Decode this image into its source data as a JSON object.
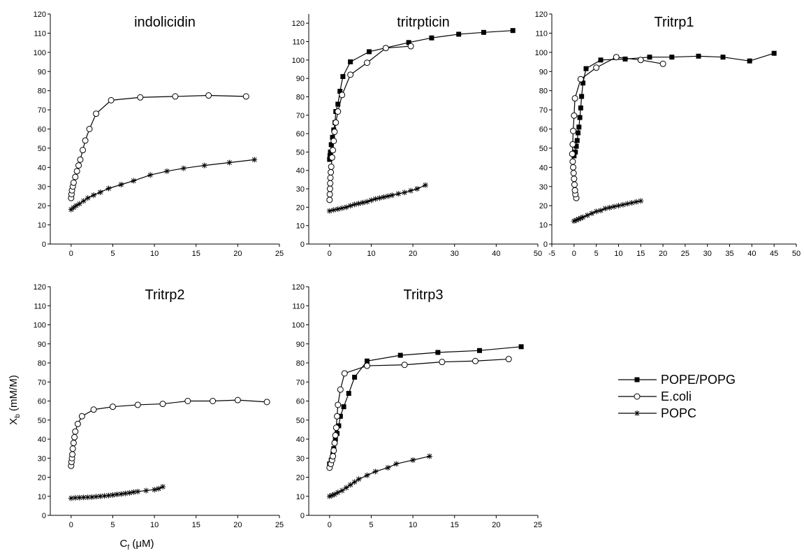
{
  "chart_data": [
    {
      "type": "line",
      "title": "indolicidin",
      "xlim": [
        -2.5,
        25
      ],
      "ylim": [
        0,
        120
      ],
      "xticks": [
        0,
        5,
        10,
        15,
        20,
        25
      ],
      "yticks": [
        0,
        10,
        20,
        30,
        40,
        50,
        60,
        70,
        80,
        90,
        100,
        110,
        120
      ],
      "series": [
        {
          "name": "E.coli",
          "color": "#000000",
          "marker": "circle",
          "x": [
            0,
            0.05,
            0.1,
            0.2,
            0.3,
            0.5,
            0.7,
            0.9,
            1.1,
            1.4,
            1.7,
            2.2,
            3,
            4.8,
            8.3,
            12.5,
            16.5,
            21
          ],
          "values": [
            24,
            26,
            28,
            30,
            32,
            35,
            38,
            41,
            44,
            49,
            54,
            60,
            68,
            75,
            76.5,
            77,
            77.5,
            77
          ]
        },
        {
          "name": "POPC",
          "color": "#000000",
          "marker": "star",
          "x": [
            0,
            0.3,
            0.6,
            1,
            1.5,
            2,
            2.7,
            3.5,
            4.5,
            6,
            7.5,
            9.5,
            11.5,
            13.5,
            16,
            19,
            22
          ],
          "values": [
            18,
            19,
            20,
            21,
            22.5,
            24,
            25.5,
            27,
            29,
            31,
            33,
            36,
            38,
            39.5,
            41,
            42.5,
            44
          ]
        }
      ]
    },
    {
      "type": "line",
      "title": "tritrpticin",
      "xlim": [
        -5,
        50
      ],
      "ylim": [
        0,
        125
      ],
      "xticks": [
        0,
        10,
        20,
        30,
        40,
        50
      ],
      "yticks": [
        0,
        10,
        20,
        30,
        40,
        50,
        60,
        70,
        80,
        90,
        100,
        110,
        120
      ],
      "series": [
        {
          "name": "POPE/POPG",
          "color": "#000000",
          "marker": "square",
          "x": [
            0,
            0.1,
            0.2,
            0.4,
            0.7,
            1,
            1.3,
            1.5,
            2,
            2.5,
            3.2,
            5,
            9.5,
            19,
            24.5,
            31,
            37,
            44
          ],
          "values": [
            46,
            48,
            50,
            54,
            58,
            62,
            66,
            72,
            76,
            83,
            91,
            99,
            104.5,
            109.5,
            112,
            114,
            115,
            116
          ]
        },
        {
          "name": "E.coli",
          "color": "#000000",
          "marker": "circle",
          "x": [
            0,
            0.05,
            0.1,
            0.15,
            0.2,
            0.3,
            0.4,
            0.6,
            0.8,
            1,
            1.2,
            1.5,
            2,
            3,
            5,
            9,
            13.5,
            19.5
          ],
          "values": [
            24,
            27,
            30,
            33,
            36,
            39,
            42,
            47,
            51,
            56,
            61,
            66,
            72,
            81,
            92,
            98.5,
            106.5,
            107.5
          ]
        },
        {
          "name": "POPC",
          "color": "#000000",
          "marker": "star",
          "x": [
            0,
            1,
            2,
            3,
            4,
            5,
            6,
            7,
            8,
            9,
            10,
            11,
            12,
            13,
            14,
            15,
            16.5,
            18,
            19.5,
            21,
            23
          ],
          "values": [
            18,
            18.5,
            19,
            19.5,
            20,
            20.8,
            21.5,
            22,
            22.5,
            23,
            23.8,
            24.5,
            25,
            25.5,
            26,
            26.5,
            27.3,
            28,
            29,
            30,
            32
          ]
        }
      ]
    },
    {
      "type": "line",
      "title": "Tritrp1",
      "xlim": [
        -5,
        50
      ],
      "ylim": [
        0,
        120
      ],
      "xticks": [
        -5,
        0,
        5,
        10,
        15,
        20,
        25,
        30,
        35,
        40,
        45,
        50
      ],
      "yticks": [
        0,
        10,
        20,
        30,
        40,
        50,
        60,
        70,
        80,
        90,
        100,
        110,
        120
      ],
      "series": [
        {
          "name": "POPE/POPG",
          "color": "#000000",
          "marker": "square",
          "x": [
            0,
            0.3,
            0.5,
            0.7,
            0.9,
            1.1,
            1.3,
            1.5,
            1.7,
            2,
            2.7,
            6,
            11.5,
            17,
            22,
            28,
            33.5,
            39.5,
            45
          ],
          "values": [
            46,
            48,
            51,
            54,
            58,
            61,
            66,
            71,
            77,
            84,
            91.5,
            96,
            96.5,
            97.5,
            97.5,
            98,
            97.5,
            95.5,
            99.5
          ]
        },
        {
          "name": "E.coli",
          "color": "#000000",
          "marker": "circle",
          "x": [
            0.5,
            0.3,
            0.2,
            0.1,
            0,
            -0.1,
            -0.2,
            -0.3,
            -0.4,
            -0.3,
            -0.2,
            0,
            0.2,
            1.5,
            5,
            9.5,
            15,
            20
          ],
          "values": [
            24,
            26,
            28,
            31,
            34,
            37,
            40,
            43,
            47,
            52,
            59,
            67,
            76,
            86,
            92,
            97.5,
            96,
            94
          ]
        },
        {
          "name": "POPC",
          "color": "#000000",
          "marker": "star",
          "x": [
            0,
            0.5,
            1,
            1.5,
            2,
            3,
            4,
            5,
            6,
            7,
            8,
            9,
            10,
            11,
            12,
            13,
            14,
            15
          ],
          "values": [
            12,
            12.5,
            13,
            13.5,
            14,
            15,
            16,
            17,
            17.5,
            18.5,
            19,
            19.5,
            20,
            20.5,
            21,
            21.5,
            22,
            22.5
          ]
        }
      ]
    },
    {
      "type": "line",
      "title": "Tritrp2",
      "xlim": [
        -2.5,
        25
      ],
      "ylim": [
        0,
        120
      ],
      "xticks": [
        0,
        5,
        10,
        15,
        20,
        25
      ],
      "yticks": [
        0,
        10,
        20,
        30,
        40,
        50,
        60,
        70,
        80,
        90,
        100,
        110,
        120
      ],
      "x_label": [
        "C",
        "f",
        " (μM)"
      ],
      "y_label": [
        "X",
        "b",
        " (mM/M)"
      ],
      "series": [
        {
          "name": "E.coli",
          "color": "#000000",
          "marker": "circle",
          "x": [
            0,
            0.05,
            0.1,
            0.15,
            0.2,
            0.3,
            0.4,
            0.5,
            0.8,
            1.3,
            2.7,
            5,
            8,
            11,
            14,
            17,
            20,
            23.5
          ],
          "values": [
            26,
            28,
            30,
            32,
            35,
            38,
            41,
            44,
            48,
            52,
            55.5,
            57,
            58,
            58.5,
            60,
            60,
            60.5,
            59.5
          ]
        },
        {
          "name": "POPC",
          "color": "#000000",
          "marker": "star",
          "x": [
            0,
            0.5,
            1,
            1.5,
            2,
            2.5,
            3,
            3.5,
            4,
            4.5,
            5,
            5.5,
            6,
            6.5,
            7,
            7.5,
            8,
            9,
            10,
            10.5,
            11
          ],
          "values": [
            9,
            9.2,
            9.3,
            9.4,
            9.5,
            9.6,
            9.8,
            10,
            10.2,
            10.4,
            10.7,
            11,
            11.2,
            11.5,
            11.8,
            12.2,
            12.5,
            13,
            13.5,
            14,
            15
          ]
        }
      ]
    },
    {
      "type": "line",
      "title": "Tritrp3",
      "xlim": [
        -2.5,
        25
      ],
      "ylim": [
        0,
        120
      ],
      "xticks": [
        0,
        5,
        10,
        15,
        20,
        25
      ],
      "yticks": [
        0,
        10,
        20,
        30,
        40,
        50,
        60,
        70,
        80,
        90,
        100,
        110,
        120
      ],
      "series": [
        {
          "name": "POPE/POPG",
          "color": "#000000",
          "marker": "square",
          "x": [
            0,
            0.2,
            0.4,
            0.5,
            0.6,
            0.7,
            0.9,
            1.1,
            1.3,
            1.7,
            2.3,
            3,
            4.5,
            8.5,
            13,
            18,
            23
          ],
          "values": [
            27,
            29,
            32,
            35,
            38,
            40,
            43,
            47,
            52,
            57,
            64,
            72.5,
            81,
            84,
            85.5,
            86.5,
            88.5
          ]
        },
        {
          "name": "E.coli",
          "color": "#000000",
          "marker": "circle",
          "x": [
            0,
            0.15,
            0.3,
            0.4,
            0.5,
            0.6,
            0.7,
            0.8,
            0.9,
            1,
            1.3,
            1.8,
            4.5,
            9,
            13.5,
            17.5,
            21.5
          ],
          "values": [
            25,
            27,
            29,
            31,
            34,
            38,
            42,
            46,
            52,
            58,
            66,
            74.5,
            78.5,
            79,
            80.5,
            81,
            82
          ]
        },
        {
          "name": "POPC",
          "color": "#000000",
          "marker": "star",
          "x": [
            0,
            0.3,
            0.6,
            1,
            1.5,
            2,
            2.5,
            3,
            3.5,
            4.5,
            5.5,
            7,
            8,
            10,
            12
          ],
          "values": [
            10,
            10.5,
            11,
            12,
            13,
            14.5,
            16,
            17.5,
            19,
            21,
            23,
            25,
            27,
            29,
            31
          ]
        }
      ]
    }
  ]
}
